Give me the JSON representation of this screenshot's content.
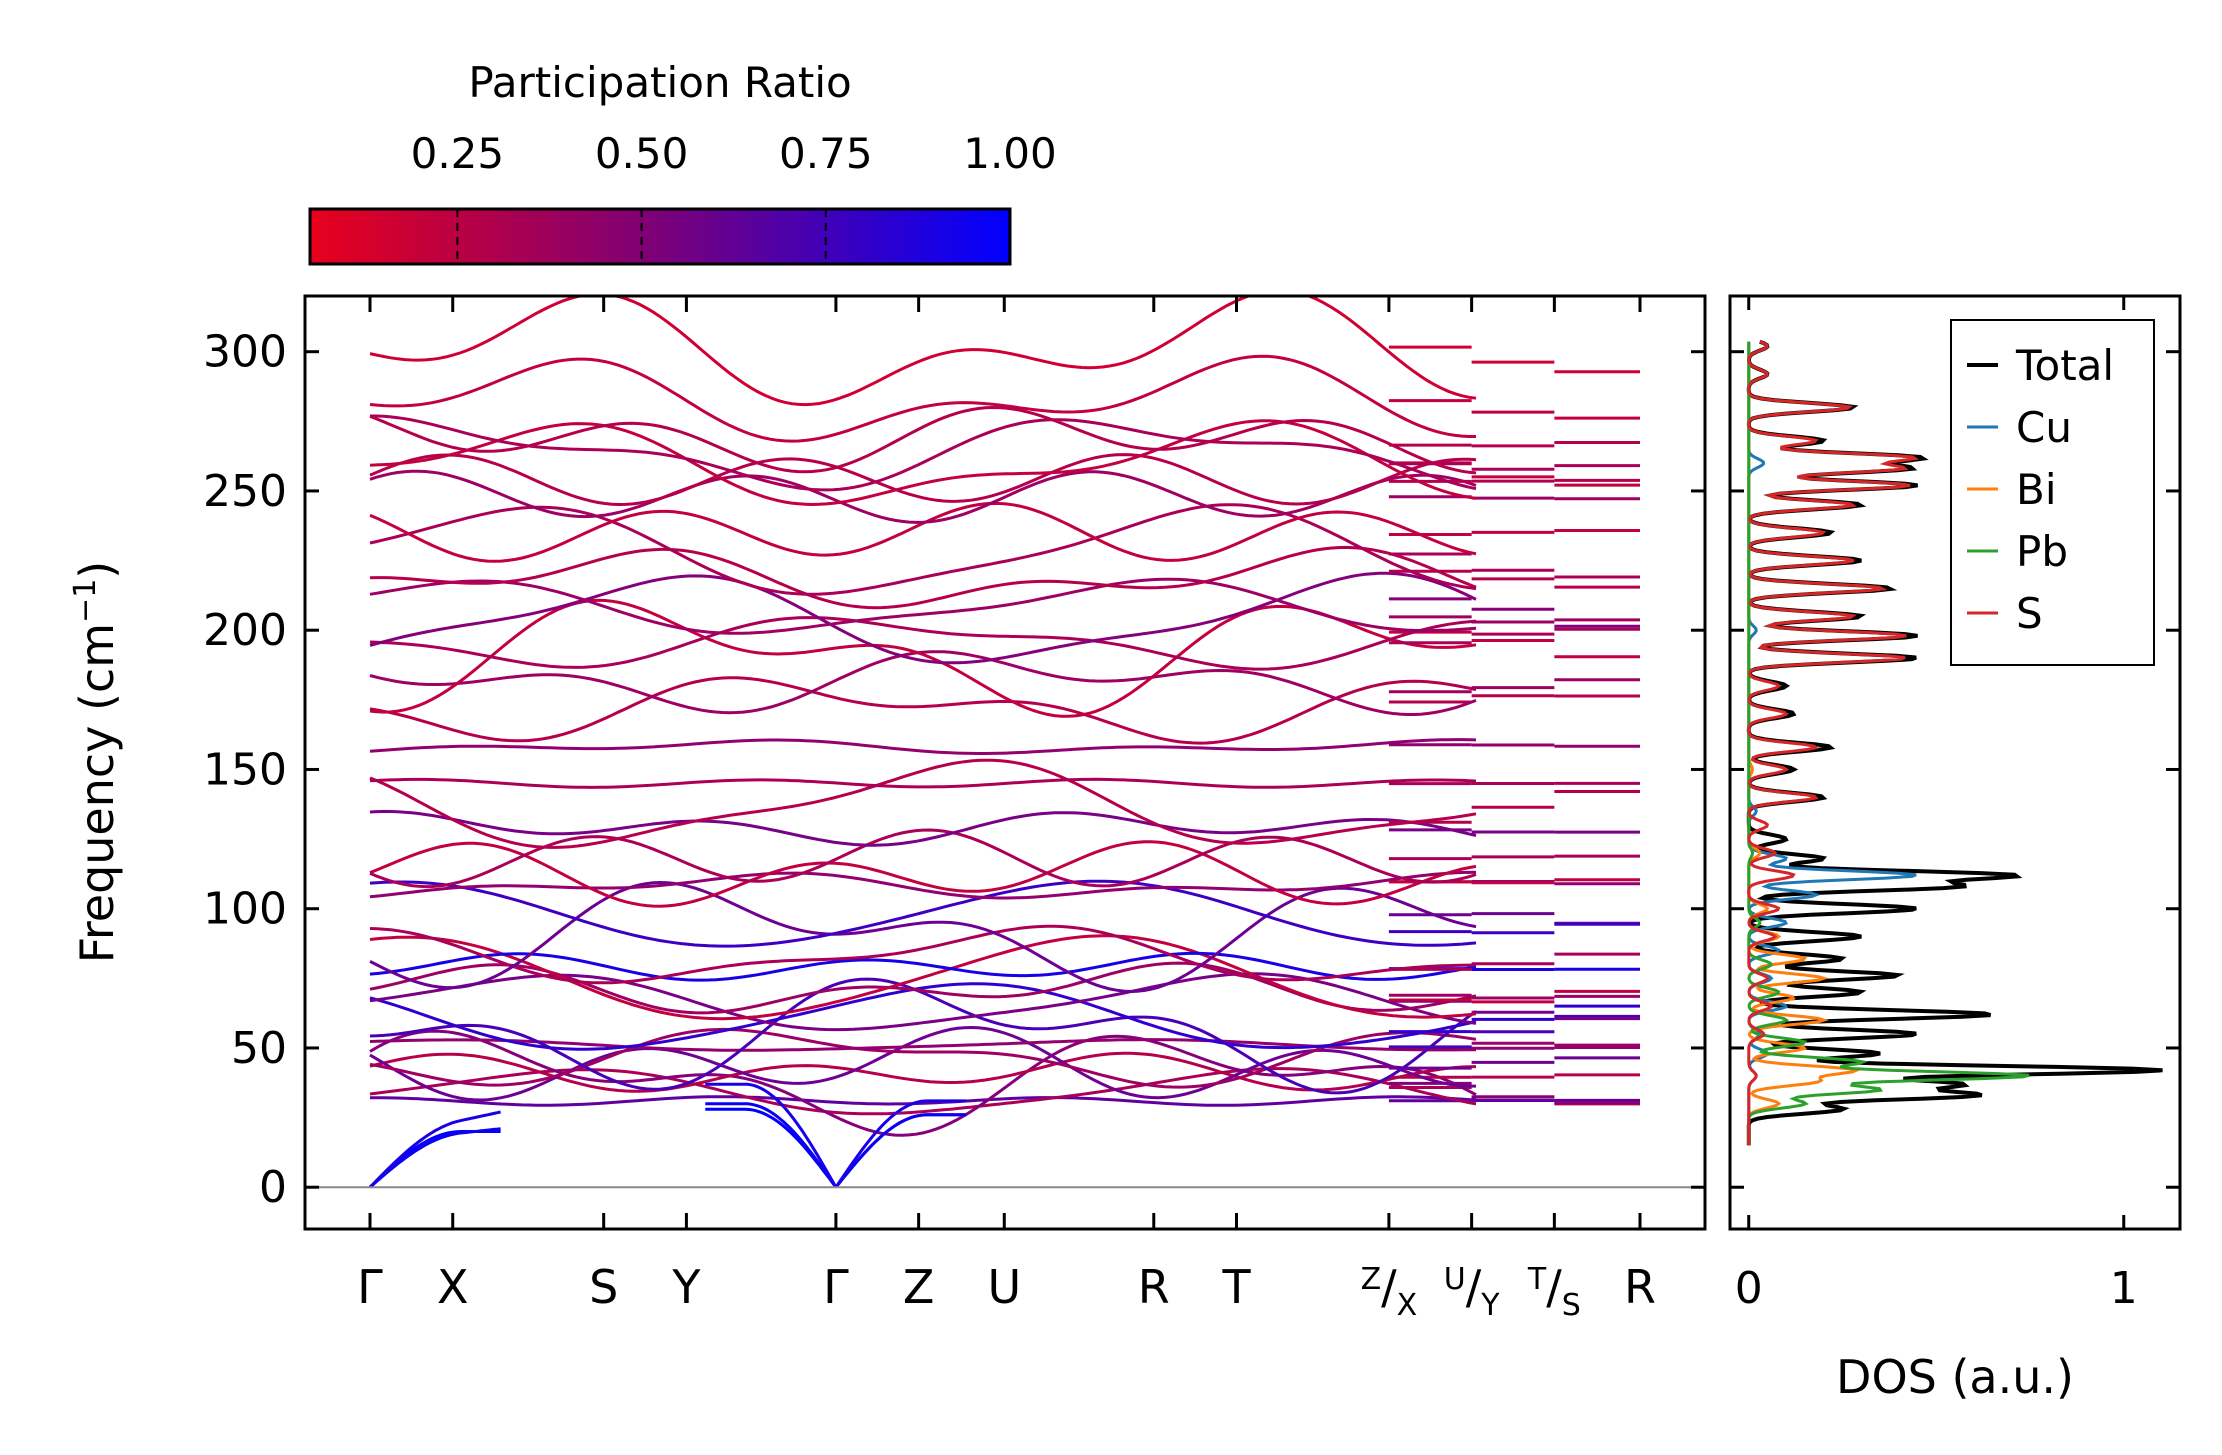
{
  "chart_data": [
    {
      "type": "line",
      "panel": "phonon-band-structure",
      "ylabel_main": "Frequency (cm",
      "ylabel_sup": "−1",
      "ylabel_close": ")",
      "ylim": [
        -15,
        320
      ],
      "yticks": [
        "0",
        "50",
        "100",
        "150",
        "200",
        "250",
        "300"
      ],
      "ytick_values": [
        0,
        50,
        100,
        150,
        200,
        250,
        300
      ],
      "kpath_labels": [
        "Γ",
        "X",
        "S",
        "Y",
        "Γ",
        "Z",
        "U",
        "R",
        "T"
      ],
      "kpath_positions": [
        0,
        0.57,
        1.61,
        2.18,
        3.21,
        3.78,
        4.37,
        5.4,
        5.97
      ],
      "kpath_end": 7.62,
      "extra_kpoints": [
        7.02,
        7.59,
        8.16,
        8.75
      ],
      "composite_labels": [
        {
          "top": "Z",
          "mid": "/",
          "bot": "X"
        },
        {
          "top": "U",
          "mid": "/",
          "bot": "Y"
        },
        {
          "top": "T",
          "mid": "/",
          "bot": "S"
        }
      ],
      "final_label": "R",
      "colorbar": {
        "title": "Participation Ratio",
        "ticks": [
          "0.25",
          "0.50",
          "0.75",
          "1.00"
        ],
        "tick_values": [
          0.25,
          0.5,
          0.75,
          1.0
        ],
        "range": [
          0.05,
          1.0
        ],
        "color_low": "#e8001c",
        "color_high": "#0000ff"
      },
      "acoustic_branches": [
        {
          "gamma": 0,
          "x_end": 20,
          "pr": 1.0
        },
        {
          "gamma": 0,
          "x_end": 16,
          "pr": 0.95
        },
        {
          "gamma": 0,
          "x_end": 17,
          "pr": 0.9
        }
      ],
      "optical_branch_frequencies": [
        31,
        34,
        38,
        41,
        44,
        47,
        51,
        56,
        61,
        66,
        71,
        75,
        79,
        83,
        91,
        98,
        108,
        112,
        118,
        129,
        137,
        145,
        158,
        172,
        182,
        191,
        196,
        203,
        208,
        218,
        228,
        235,
        248,
        254,
        259,
        264,
        269,
        282,
        300
      ],
      "optical_branch_pr": [
        0.6,
        0.3,
        0.45,
        0.25,
        0.55,
        0.35,
        0.4,
        0.7,
        0.8,
        0.5,
        0.35,
        0.2,
        0.9,
        0.3,
        0.55,
        0.75,
        0.4,
        0.2,
        0.3,
        0.5,
        0.25,
        0.3,
        0.4,
        0.25,
        0.35,
        0.2,
        0.3,
        0.45,
        0.35,
        0.25,
        0.3,
        0.2,
        0.35,
        0.25,
        0.2,
        0.3,
        0.25,
        0.2,
        0.15
      ]
    },
    {
      "type": "line",
      "panel": "density-of-states",
      "xlabel": "DOS (a.u.)",
      "xlim": [
        -0.05,
        1.15
      ],
      "xticks": [
        "0",
        "1"
      ],
      "xtick_values": [
        0,
        1
      ],
      "ylim": [
        -15,
        320
      ],
      "legend_placement": "top-right",
      "series": [
        {
          "name": "Total",
          "color": "#000000",
          "peaks": [
            [
              22,
              0.0
            ],
            [
              28,
              0.25
            ],
            [
              33,
              0.6
            ],
            [
              37,
              0.55
            ],
            [
              42,
              1.1
            ],
            [
              48,
              0.35
            ],
            [
              55,
              0.45
            ],
            [
              62,
              0.65
            ],
            [
              70,
              0.3
            ],
            [
              76,
              0.4
            ],
            [
              82,
              0.25
            ],
            [
              90,
              0.3
            ],
            [
              100,
              0.45
            ],
            [
              108,
              0.55
            ],
            [
              112,
              0.7
            ],
            [
              118,
              0.2
            ],
            [
              125,
              0.1
            ],
            [
              140,
              0.2
            ],
            [
              150,
              0.12
            ],
            [
              158,
              0.22
            ],
            [
              170,
              0.12
            ],
            [
              180,
              0.1
            ],
            [
              190,
              0.45
            ],
            [
              198,
              0.45
            ],
            [
              205,
              0.3
            ],
            [
              215,
              0.38
            ],
            [
              225,
              0.3
            ],
            [
              235,
              0.22
            ],
            [
              245,
              0.3
            ],
            [
              252,
              0.45
            ],
            [
              258,
              0.42
            ],
            [
              262,
              0.45
            ],
            [
              268,
              0.2
            ],
            [
              280,
              0.28
            ],
            [
              292,
              0.05
            ],
            [
              302,
              0.05
            ]
          ]
        },
        {
          "name": "Cu",
          "color": "#1f77b4",
          "peaks": [
            [
              25,
              0.0
            ],
            [
              40,
              0.02
            ],
            [
              48,
              0.05
            ],
            [
              55,
              0.03
            ],
            [
              65,
              0.1
            ],
            [
              75,
              0.06
            ],
            [
              85,
              0.08
            ],
            [
              95,
              0.1
            ],
            [
              105,
              0.18
            ],
            [
              112,
              0.45
            ],
            [
              118,
              0.1
            ],
            [
              135,
              0.02
            ],
            [
              200,
              0.02
            ],
            [
              260,
              0.04
            ],
            [
              300,
              0.0
            ]
          ]
        },
        {
          "name": "Bi",
          "color": "#ff7f0e",
          "peaks": [
            [
              22,
              0.0
            ],
            [
              30,
              0.08
            ],
            [
              38,
              0.18
            ],
            [
              42,
              0.28
            ],
            [
              50,
              0.15
            ],
            [
              60,
              0.2
            ],
            [
              68,
              0.12
            ],
            [
              75,
              0.2
            ],
            [
              82,
              0.15
            ],
            [
              90,
              0.08
            ],
            [
              100,
              0.05
            ],
            [
              120,
              0.03
            ],
            [
              150,
              0.01
            ],
            [
              200,
              0.0
            ]
          ]
        },
        {
          "name": "Pb",
          "color": "#2ca02c",
          "peaks": [
            [
              22,
              0.0
            ],
            [
              30,
              0.15
            ],
            [
              35,
              0.35
            ],
            [
              40,
              0.75
            ],
            [
              45,
              0.3
            ],
            [
              52,
              0.15
            ],
            [
              60,
              0.1
            ],
            [
              70,
              0.08
            ],
            [
              80,
              0.06
            ],
            [
              95,
              0.03
            ],
            [
              120,
              0.01
            ],
            [
              200,
              0.0
            ]
          ]
        },
        {
          "name": "S",
          "color": "#d62728",
          "peaks": [
            [
              22,
              0.0
            ],
            [
              40,
              0.02
            ],
            [
              55,
              0.04
            ],
            [
              65,
              0.06
            ],
            [
              75,
              0.05
            ],
            [
              90,
              0.07
            ],
            [
              100,
              0.08
            ],
            [
              112,
              0.12
            ],
            [
              120,
              0.07
            ],
            [
              130,
              0.05
            ],
            [
              140,
              0.18
            ],
            [
              150,
              0.1
            ],
            [
              158,
              0.18
            ],
            [
              170,
              0.1
            ],
            [
              180,
              0.08
            ],
            [
              190,
              0.42
            ],
            [
              198,
              0.42
            ],
            [
              205,
              0.28
            ],
            [
              215,
              0.36
            ],
            [
              225,
              0.28
            ],
            [
              235,
              0.2
            ],
            [
              245,
              0.28
            ],
            [
              252,
              0.43
            ],
            [
              258,
              0.4
            ],
            [
              262,
              0.43
            ],
            [
              268,
              0.18
            ],
            [
              280,
              0.27
            ],
            [
              292,
              0.05
            ],
            [
              302,
              0.05
            ]
          ]
        }
      ]
    }
  ]
}
